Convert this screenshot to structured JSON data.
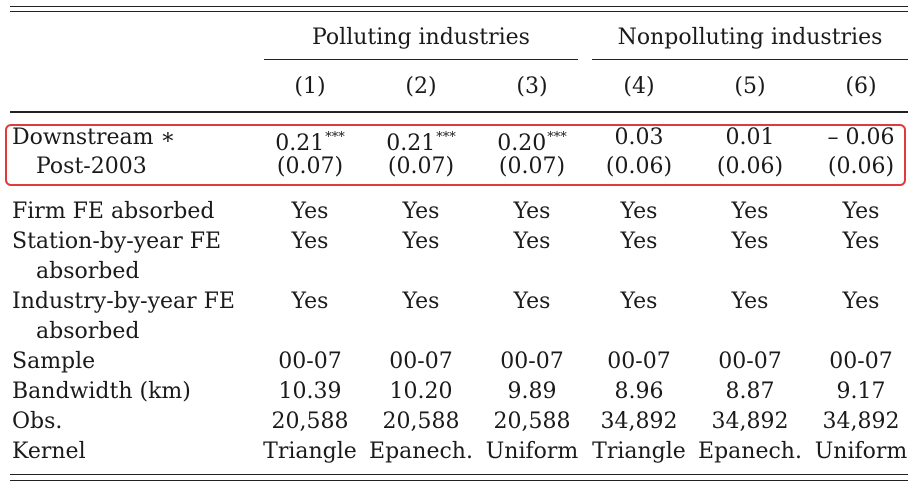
{
  "header": {
    "groups": [
      "Polluting industries",
      "Nonpolluting industries"
    ],
    "columns": [
      "(1)",
      "(2)",
      "(3)",
      "(4)",
      "(5)",
      "(6)"
    ]
  },
  "highlight_color": "#e23a3a",
  "treatment": {
    "label_line1": "Downstream ∗",
    "label_line2": "Post-2003",
    "coefficients": [
      {
        "value": "0.21",
        "stars": "***"
      },
      {
        "value": "0.21",
        "stars": "***"
      },
      {
        "value": "0.20",
        "stars": "***"
      },
      {
        "value": "0.03",
        "stars": ""
      },
      {
        "value": "0.01",
        "stars": ""
      },
      {
        "value": "– 0.06",
        "stars": ""
      }
    ],
    "std_errors": [
      "(0.07)",
      "(0.07)",
      "(0.07)",
      "(0.06)",
      "(0.06)",
      "(0.06)"
    ]
  },
  "controls": [
    {
      "label_lines": [
        "Firm FE absorbed"
      ],
      "values": [
        "Yes",
        "Yes",
        "Yes",
        "Yes",
        "Yes",
        "Yes"
      ]
    },
    {
      "label_lines": [
        "Station-by-year FE",
        "absorbed"
      ],
      "values": [
        "Yes",
        "Yes",
        "Yes",
        "Yes",
        "Yes",
        "Yes"
      ]
    },
    {
      "label_lines": [
        "Industry-by-year FE",
        "absorbed"
      ],
      "values": [
        "Yes",
        "Yes",
        "Yes",
        "Yes",
        "Yes",
        "Yes"
      ]
    }
  ],
  "stats": [
    {
      "label": "Sample",
      "values": [
        "00-07",
        "00-07",
        "00-07",
        "00-07",
        "00-07",
        "00-07"
      ]
    },
    {
      "label": "Bandwidth (km)",
      "values": [
        "10.39",
        "10.20",
        "9.89",
        "8.96",
        "8.87",
        "9.17"
      ]
    },
    {
      "label": "Obs.",
      "values": [
        "20,588",
        "20,588",
        "20,588",
        "34,892",
        "34,892",
        "34,892"
      ]
    },
    {
      "label": "Kernel",
      "values": [
        "Triangle",
        "Epanech.",
        "Uniform",
        "Triangle",
        "Epanech.",
        "Uniform"
      ]
    }
  ]
}
